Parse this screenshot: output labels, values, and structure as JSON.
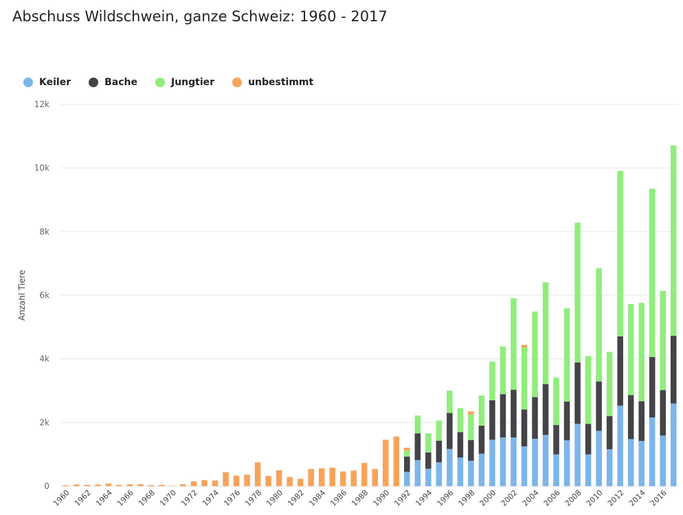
{
  "chart_data": {
    "type": "bar",
    "stacked": true,
    "title": "Abschuss Wildschwein, ganze Schweiz: 1960 - 2017",
    "ylabel": "Anzahl Tiere",
    "ylim": [
      0,
      12000
    ],
    "yticks": [
      0,
      2000,
      4000,
      6000,
      8000,
      10000,
      12000
    ],
    "ytick_labels": [
      "0",
      "2k",
      "4k",
      "6k",
      "8k",
      "10k",
      "12k"
    ],
    "grid": true,
    "legend_position": "top-left",
    "categories": [
      1960,
      1961,
      1962,
      1963,
      1964,
      1965,
      1966,
      1967,
      1968,
      1969,
      1970,
      1971,
      1972,
      1973,
      1974,
      1975,
      1976,
      1977,
      1978,
      1979,
      1980,
      1981,
      1982,
      1983,
      1984,
      1985,
      1986,
      1987,
      1988,
      1989,
      1990,
      1991,
      1992,
      1993,
      1994,
      1995,
      1996,
      1997,
      1998,
      1999,
      2000,
      2001,
      2002,
      2003,
      2004,
      2005,
      2006,
      2007,
      2008,
      2009,
      2010,
      2011,
      2012,
      2013,
      2014,
      2015,
      2016,
      2017
    ],
    "xtick_labels": [
      "1960",
      "1962",
      "1964",
      "1966",
      "1968",
      "1970",
      "1972",
      "1974",
      "1976",
      "1978",
      "1980",
      "1982",
      "1984",
      "1986",
      "1988",
      "1990",
      "1992",
      "1994",
      "1996",
      "1998",
      "2000",
      "2002",
      "2004",
      "2006",
      "2008",
      "2010",
      "2012",
      "2014",
      "2016"
    ],
    "series": [
      {
        "name": "Keiler",
        "color": "#7cb5ec",
        "values": [
          0,
          0,
          0,
          0,
          0,
          0,
          0,
          0,
          0,
          0,
          0,
          0,
          0,
          0,
          0,
          0,
          0,
          0,
          0,
          0,
          0,
          0,
          0,
          0,
          0,
          0,
          0,
          0,
          0,
          0,
          0,
          0,
          450,
          820,
          550,
          750,
          1170,
          900,
          800,
          1020,
          1460,
          1530,
          1530,
          1250,
          1490,
          1610,
          1000,
          1440,
          1960,
          1000,
          1740,
          1160,
          2530,
          1480,
          1420,
          2160,
          1590,
          2600
        ]
      },
      {
        "name": "Bache",
        "color": "#434348",
        "values": [
          0,
          0,
          0,
          0,
          0,
          0,
          0,
          0,
          0,
          0,
          0,
          0,
          0,
          0,
          0,
          0,
          0,
          0,
          0,
          0,
          0,
          0,
          0,
          0,
          0,
          0,
          0,
          0,
          0,
          0,
          0,
          0,
          480,
          840,
          510,
          680,
          1130,
          800,
          650,
          880,
          1240,
          1360,
          1500,
          1160,
          1310,
          1600,
          920,
          1220,
          1930,
          960,
          1550,
          1040,
          2180,
          1380,
          1250,
          1900,
          1430,
          2130
        ]
      },
      {
        "name": "Jungtier",
        "color": "#90ed7d",
        "values": [
          0,
          0,
          0,
          0,
          0,
          0,
          0,
          0,
          0,
          0,
          0,
          0,
          0,
          0,
          0,
          0,
          0,
          0,
          0,
          0,
          0,
          0,
          0,
          0,
          0,
          0,
          0,
          0,
          0,
          0,
          0,
          0,
          190,
          560,
          600,
          630,
          700,
          750,
          800,
          950,
          1220,
          1500,
          2880,
          1950,
          2690,
          3200,
          1490,
          2930,
          4390,
          2130,
          3560,
          2020,
          5200,
          2860,
          3090,
          5290,
          3120,
          5980
        ]
      },
      {
        "name": "unbestimmt",
        "color": "#f7a35c",
        "values": [
          30,
          50,
          40,
          50,
          80,
          40,
          60,
          60,
          30,
          40,
          10,
          60,
          150,
          190,
          180,
          440,
          330,
          360,
          750,
          320,
          500,
          290,
          230,
          540,
          560,
          580,
          460,
          490,
          730,
          540,
          1460,
          1560,
          90,
          0,
          0,
          0,
          0,
          0,
          100,
          0,
          0,
          0,
          0,
          80,
          0,
          0,
          0,
          0,
          0,
          0,
          0,
          0,
          0,
          0,
          0,
          0,
          0,
          0
        ]
      }
    ]
  }
}
